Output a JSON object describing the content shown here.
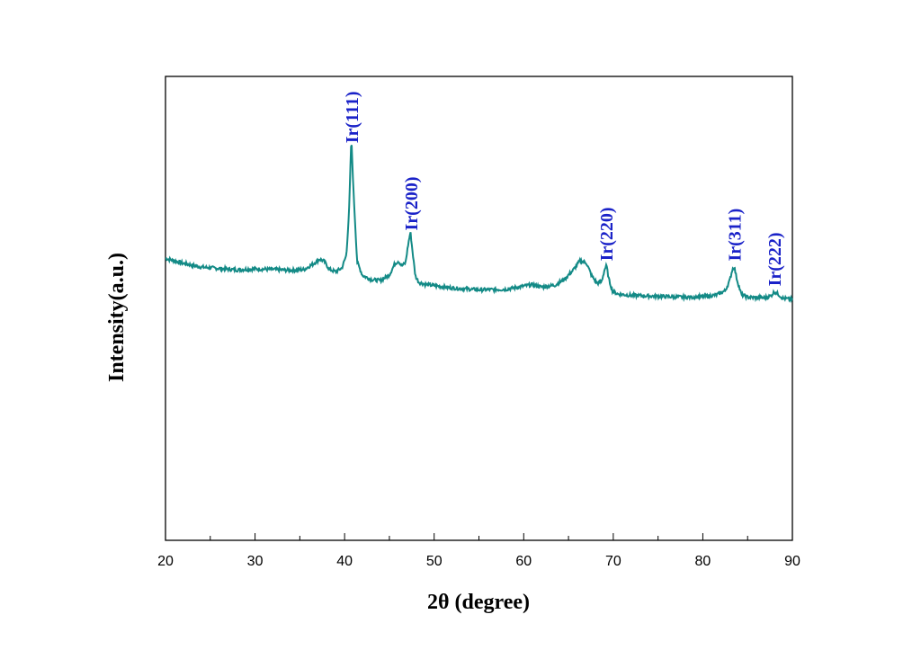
{
  "chart_data": {
    "type": "line",
    "xlabel": "2θ (degree)",
    "ylabel": "Intensity(a.u.)",
    "xlim": [
      20,
      90
    ],
    "ylim": [
      0,
      100
    ],
    "x_ticks": [
      "20",
      "30",
      "40",
      "50",
      "60",
      "70",
      "80",
      "90"
    ],
    "y_ticks_shown": false,
    "grid": false,
    "line_color": "#138A86",
    "label_color": "#1a22c8",
    "series": [
      {
        "x": [
          20,
          22,
          24,
          26,
          28,
          30,
          32,
          34,
          35.5,
          36.5,
          37.2,
          37.7,
          38.3,
          39.0,
          39.7,
          40.2,
          40.5,
          40.75,
          41.0,
          41.4,
          42,
          43,
          44,
          45,
          45.6,
          46.0,
          46.4,
          46.8,
          47.1,
          47.35,
          47.6,
          47.9,
          48.3,
          49,
          50,
          52,
          55,
          58,
          60,
          61,
          62,
          63.5,
          64.5,
          65.5,
          66.3,
          67.0,
          67.6,
          68.2,
          68.7,
          69.05,
          69.25,
          69.5,
          69.9,
          70.5,
          72,
          75,
          78,
          80,
          81.5,
          82.5,
          83.0,
          83.3,
          83.5,
          83.8,
          84.3,
          85,
          86,
          87,
          87.6,
          88.0,
          88.4,
          88.9,
          90
        ],
        "y": [
          60.8,
          59.7,
          58.9,
          58.6,
          58.3,
          58.5,
          58.4,
          58.2,
          58.4,
          59.6,
          60.6,
          60.2,
          58.4,
          57.9,
          58.7,
          61.5,
          71.0,
          86.8,
          75.0,
          60.0,
          57.1,
          56.2,
          56.0,
          57.2,
          59.6,
          60.2,
          59.2,
          59.8,
          63.8,
          66.5,
          62.0,
          57.0,
          55.6,
          55.2,
          54.9,
          54.4,
          54.0,
          54.1,
          54.8,
          55.1,
          54.6,
          55.0,
          56.2,
          58.2,
          60.3,
          59.8,
          57.0,
          55.4,
          55.8,
          58.5,
          59.2,
          56.3,
          53.8,
          53.1,
          52.8,
          52.6,
          52.4,
          52.5,
          52.9,
          53.8,
          56.0,
          58.4,
          59.0,
          56.3,
          53.0,
          52.4,
          52.3,
          52.3,
          52.7,
          53.6,
          53.1,
          52.2,
          51.9
        ]
      }
    ],
    "annotations": [
      {
        "text": "Ir(111)",
        "x": 40.8
      },
      {
        "text": "Ir(200)",
        "x": 47.4
      },
      {
        "text": "Ir(220)",
        "x": 69.2
      },
      {
        "text": "Ir(311)",
        "x": 83.5
      },
      {
        "text": "Ir(222)",
        "x": 88.0
      }
    ]
  }
}
